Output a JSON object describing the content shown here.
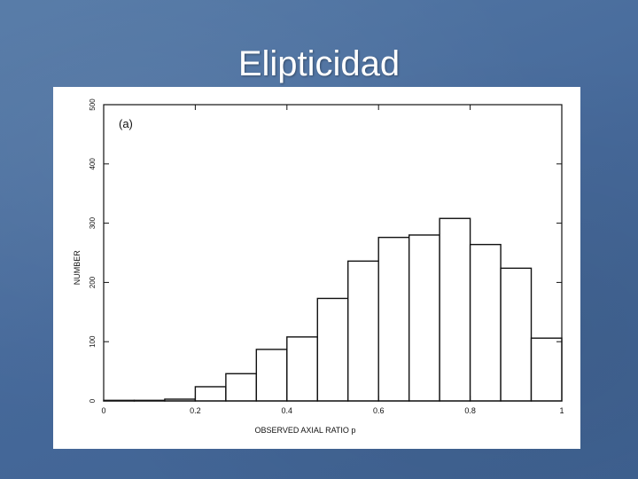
{
  "slide": {
    "title": "Elipticidad",
    "background_color": "#4a6f9c",
    "title_color": "#ffffff"
  },
  "chart_data": {
    "type": "bar",
    "histogram": true,
    "panel_label": "(a)",
    "xlabel": "OBSERVED AXIAL RATIO p",
    "ylabel": "NUMBER",
    "xlim": [
      0,
      1
    ],
    "ylim": [
      0,
      500
    ],
    "x_ticks": [
      0,
      0.2,
      0.4,
      0.6,
      0.8,
      1
    ],
    "x_tick_labels": [
      "0",
      "0.2",
      "0.4",
      "0.6",
      "0.8",
      "1"
    ],
    "y_ticks": [
      0,
      100,
      200,
      300,
      400,
      500
    ],
    "y_tick_labels": [
      "0",
      "100",
      "200",
      "300",
      "400",
      "500"
    ],
    "bin_edges": [
      0,
      0.0667,
      0.1333,
      0.2,
      0.2667,
      0.3333,
      0.4,
      0.4667,
      0.5333,
      0.6,
      0.6667,
      0.7333,
      0.8,
      0.8667,
      0.9333,
      1.0
    ],
    "values": [
      1,
      1,
      3,
      24,
      46,
      87,
      108,
      173,
      236,
      276,
      280,
      308,
      264,
      224,
      106
    ],
    "grid": false,
    "legend": "none"
  }
}
